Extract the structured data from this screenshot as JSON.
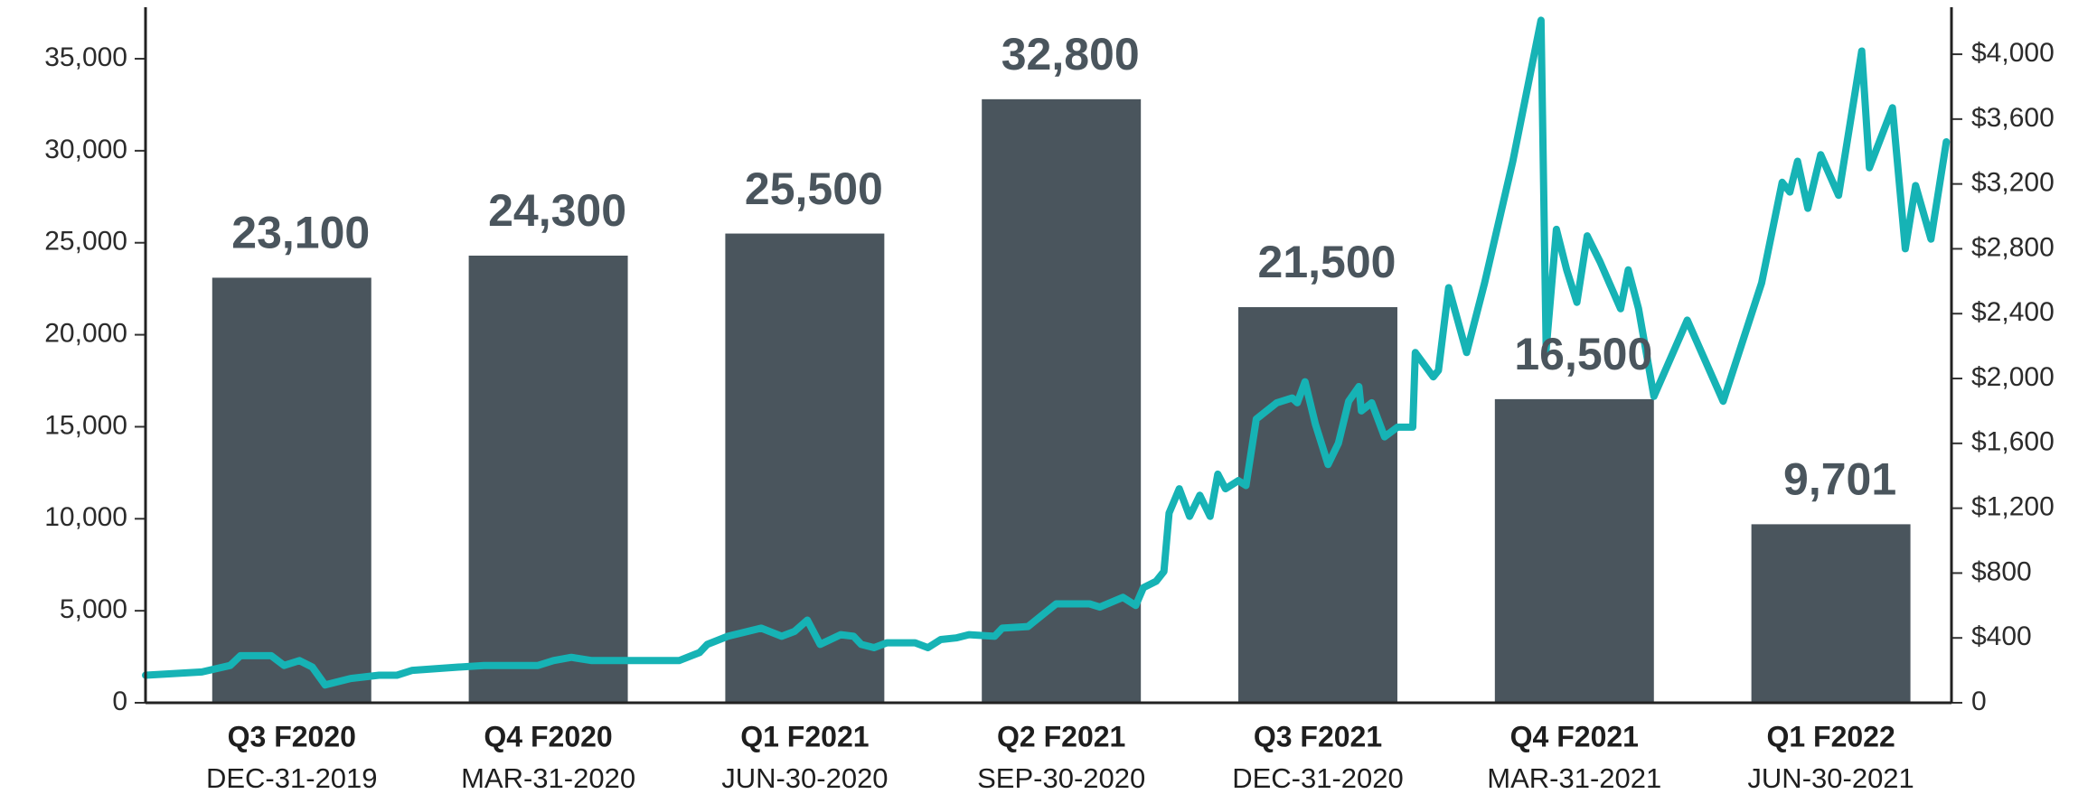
{
  "chart_data": {
    "type": "bar",
    "categories": [
      "Q3 F2020",
      "Q4 F2020",
      "Q1 F2021",
      "Q2 F2021",
      "Q3 F2021",
      "Q4 F2021",
      "Q1 F2022"
    ],
    "category_dates": [
      "DEC-31-2019",
      "MAR-31-2020",
      "JUN-30-2020",
      "SEP-30-2020",
      "DEC-31-2020",
      "MAR-31-2021",
      "JUN-30-2021"
    ],
    "values": [
      23100,
      24300,
      25500,
      32800,
      21500,
      16500,
      9701
    ],
    "value_labels": [
      "23,100",
      "24,300",
      "25,500",
      "32,800",
      "21,500",
      "16,500",
      "9,701"
    ],
    "color": "#4a555d",
    "xlim": [
      -0.57,
      6.47
    ],
    "ylim": [
      0,
      37800
    ],
    "yticks": [
      0,
      {
        "value": 5000,
        "label": "5,000"
      },
      {
        "value": 10000,
        "label": "10,000"
      },
      {
        "value": 15000,
        "label": "15,000"
      },
      {
        "value": 20000,
        "label": "20,000"
      },
      {
        "value": 25000,
        "label": "25,000"
      },
      {
        "value": 30000,
        "label": "30,000"
      },
      {
        "value": 35000,
        "label": "35,000"
      }
    ],
    "y2lim": [
      0,
      4290
    ],
    "y2ticks": [
      0,
      {
        "value": 400,
        "label": "$400"
      },
      {
        "value": 800,
        "label": "$800"
      },
      {
        "value": 1200,
        "label": "$1,200"
      },
      {
        "value": 1600,
        "label": "$1,600"
      },
      {
        "value": 2000,
        "label": "$2,000"
      },
      {
        "value": 2400,
        "label": "$2,400"
      },
      {
        "value": 2800,
        "label": "$2,800"
      },
      {
        "value": 3200,
        "label": "$3,200"
      },
      {
        "value": 3600,
        "label": "$3,600"
      },
      {
        "value": 4000,
        "label": "$4,000"
      }
    ],
    "series": [
      {
        "type": "line",
        "axis": "y2",
        "color": "#16b3b5",
        "x": [
          -0.57,
          -0.35,
          -0.24,
          -0.2,
          -0.08,
          -0.03,
          0.03,
          0.08,
          0.13,
          0.23,
          0.34,
          0.41,
          0.47,
          0.65,
          0.75,
          0.96,
          1.02,
          1.09,
          1.17,
          1.28,
          1.51,
          1.59,
          1.62,
          1.7,
          1.83,
          1.91,
          1.96,
          2.01,
          2.06,
          2.14,
          2.19,
          2.22,
          2.27,
          2.32,
          2.43,
          2.48,
          2.53,
          2.59,
          2.64,
          2.74,
          2.77,
          2.87,
          2.98,
          3.11,
          3.15,
          3.24,
          3.29,
          3.32,
          3.37,
          3.4,
          3.42,
          3.46,
          3.5,
          3.54,
          3.58,
          3.61,
          3.64,
          3.69,
          3.72,
          3.76,
          3.84,
          3.9,
          3.92,
          3.95,
          3.99,
          4.04,
          4.08,
          4.12,
          4.16,
          4.17,
          4.21,
          4.26,
          4.31,
          4.37,
          4.38,
          4.45,
          4.47,
          4.51,
          4.58,
          4.65,
          4.76,
          4.87,
          4.89,
          4.93,
          4.97,
          5.01,
          5.05,
          5.1,
          5.18,
          5.21,
          5.25,
          5.31,
          5.44,
          5.58,
          5.73,
          5.81,
          5.84,
          5.87,
          5.91,
          5.96,
          6.03,
          6.12,
          6.15,
          6.24,
          6.29,
          6.33,
          6.39,
          6.45
        ],
        "values": [
          170,
          190,
          230,
          290,
          290,
          230,
          260,
          220,
          110,
          150,
          170,
          170,
          200,
          220,
          230,
          230,
          260,
          280,
          260,
          260,
          260,
          310,
          360,
          410,
          460,
          410,
          440,
          510,
          360,
          420,
          410,
          360,
          340,
          370,
          370,
          340,
          390,
          400,
          420,
          410,
          460,
          470,
          610,
          610,
          590,
          650,
          600,
          710,
          750,
          810,
          1170,
          1320,
          1150,
          1280,
          1150,
          1410,
          1320,
          1370,
          1340,
          1750,
          1850,
          1880,
          1850,
          1980,
          1720,
          1470,
          1600,
          1860,
          1950,
          1800,
          1850,
          1640,
          1700,
          1700,
          2160,
          2010,
          2050,
          2560,
          2160,
          2590,
          3340,
          4210,
          2180,
          2920,
          2670,
          2470,
          2880,
          2720,
          2430,
          2670,
          2430,
          1890,
          2360,
          1860,
          2590,
          3210,
          3150,
          3340,
          3050,
          3380,
          3130,
          4020,
          3300,
          3670,
          2800,
          3190,
          2860,
          3460
        ]
      }
    ]
  }
}
